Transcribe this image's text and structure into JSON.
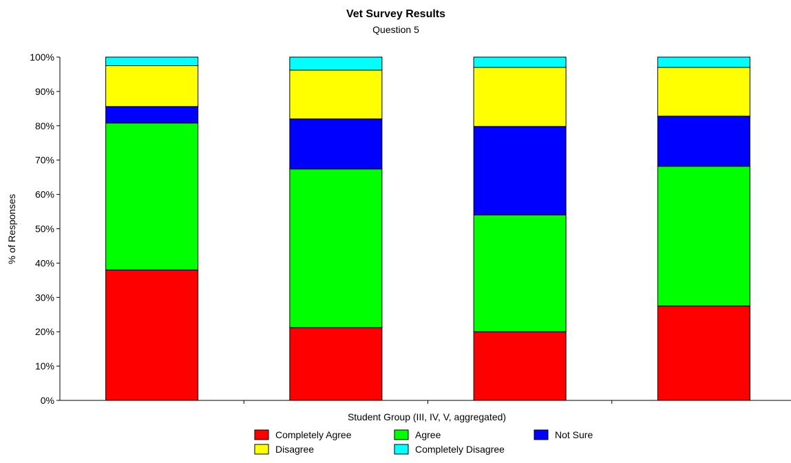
{
  "chart_data": {
    "type": "bar",
    "stacked": true,
    "percent_stacked": true,
    "title": "Vet Survey Results",
    "subtitle": "Question 5",
    "xlabel": "Student Group (III, IV, V, aggregated)",
    "ylabel": "% of Responses",
    "categories": [
      "",
      "",
      "",
      ""
    ],
    "ylim": [
      0,
      100
    ],
    "yticks": [
      "0%",
      "10%",
      "20%",
      "30%",
      "40%",
      "50%",
      "60%",
      "70%",
      "80%",
      "90%",
      "100%"
    ],
    "grid": false,
    "legend_position": "bottom",
    "series": [
      {
        "name": "Completely Agree",
        "color": "#FF0000",
        "values": [
          38,
          21.2,
          20,
          27.5
        ]
      },
      {
        "name": "Agree",
        "color": "#00FF00",
        "values": [
          42.8,
          46.2,
          34,
          40.7
        ]
      },
      {
        "name": "Not Sure",
        "color": "#0000FF",
        "values": [
          4.8,
          14.6,
          25.8,
          14.6
        ]
      },
      {
        "name": "Disagree",
        "color": "#FFFF00",
        "values": [
          11.9,
          14.2,
          17.2,
          14.2
        ]
      },
      {
        "name": "Completely Disagree",
        "color": "#00FFFF",
        "values": [
          2.5,
          3.8,
          3,
          3
        ]
      }
    ]
  }
}
